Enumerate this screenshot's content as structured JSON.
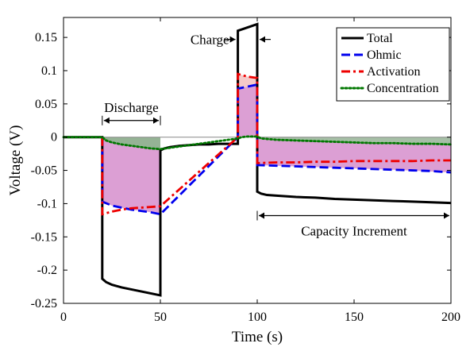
{
  "chart_data": {
    "type": "line",
    "title": "",
    "xlabel": "Time (s)",
    "ylabel": "Voltage (V)",
    "xlim": [
      0,
      200
    ],
    "ylim": [
      -0.25,
      0.18
    ],
    "xticks": [
      0,
      50,
      100,
      150,
      200
    ],
    "xtick_labels": [
      "0",
      "50",
      "100",
      "150",
      "200"
    ],
    "yticks": [
      -0.25,
      -0.2,
      -0.15,
      -0.1,
      -0.05,
      0,
      0.05,
      0.1,
      0.15
    ],
    "ytick_labels": [
      "-0.25",
      "-0.2",
      "-0.15",
      "-0.1",
      "-0.05",
      "0",
      "0.05",
      "0.1",
      "0.15"
    ],
    "grid": false,
    "legend_position": "top-right",
    "series": [
      {
        "name": "Total",
        "color": "#000000",
        "dash": "solid",
        "x": [
          0,
          20,
          20,
          22,
          25,
          30,
          35,
          40,
          45,
          50,
          50,
          52,
          55,
          60,
          65,
          70,
          75,
          80,
          85,
          90,
          90,
          92,
          95,
          98,
          100,
          100,
          102,
          105,
          110,
          120,
          130,
          140,
          150,
          160,
          170,
          180,
          190,
          200
        ],
        "y": [
          0,
          0,
          -0.213,
          -0.218,
          -0.222,
          -0.226,
          -0.229,
          -0.232,
          -0.235,
          -0.238,
          -0.02,
          -0.017,
          -0.015,
          -0.013,
          -0.012,
          -0.011,
          -0.011,
          -0.01,
          -0.01,
          -0.01,
          0.16,
          0.162,
          0.165,
          0.168,
          0.17,
          -0.082,
          -0.085,
          -0.087,
          -0.088,
          -0.09,
          -0.091,
          -0.093,
          -0.094,
          -0.095,
          -0.096,
          -0.097,
          -0.098,
          -0.099
        ]
      },
      {
        "name": "Ohmic",
        "color": "#0000ee",
        "dash": "dashed",
        "x": [
          20,
          20,
          25,
          30,
          35,
          40,
          45,
          50,
          90,
          90,
          95,
          100,
          100,
          110,
          120,
          130,
          140,
          150,
          160,
          170,
          180,
          190,
          200
        ],
        "y": [
          0,
          -0.097,
          -0.103,
          -0.106,
          -0.109,
          -0.111,
          -0.113,
          -0.116,
          0,
          0.073,
          0.076,
          0.079,
          -0.042,
          -0.043,
          -0.044,
          -0.045,
          -0.046,
          -0.047,
          -0.048,
          -0.049,
          -0.05,
          -0.051,
          -0.053
        ]
      },
      {
        "name": "Activation",
        "color": "#ee0000",
        "dash": "dashdot",
        "x": [
          20,
          20,
          25,
          30,
          35,
          40,
          45,
          50,
          90,
          90,
          95,
          100,
          100,
          110,
          120,
          130,
          140,
          150,
          160,
          170,
          180,
          190,
          200
        ],
        "y": [
          0,
          -0.116,
          -0.112,
          -0.109,
          -0.107,
          -0.106,
          -0.105,
          -0.104,
          0,
          0.095,
          0.091,
          0.089,
          -0.039,
          -0.038,
          -0.038,
          -0.037,
          -0.037,
          -0.036,
          -0.036,
          -0.036,
          -0.036,
          -0.035,
          -0.035
        ]
      },
      {
        "name": "Concentration",
        "color": "#007700",
        "dash": "dotted",
        "x": [
          0,
          20,
          22,
          25,
          30,
          35,
          40,
          45,
          50,
          90,
          92,
          95,
          98,
          100,
          102,
          110,
          120,
          130,
          140,
          150,
          160,
          170,
          180,
          190,
          200
        ],
        "y": [
          0,
          0,
          -0.005,
          -0.008,
          -0.011,
          -0.013,
          -0.015,
          -0.017,
          -0.018,
          -0.002,
          0,
          0.001,
          0.001,
          0.001,
          -0.002,
          -0.004,
          -0.005,
          -0.006,
          -0.007,
          -0.008,
          -0.009,
          -0.009,
          -0.01,
          -0.01,
          -0.011
        ]
      }
    ],
    "shaded_regions": [
      {
        "color": "#c050b0",
        "opacity": 0.55,
        "x": [
          20,
          25,
          30,
          35,
          40,
          45,
          50
        ],
        "y_top": [
          -0.005,
          -0.008,
          -0.011,
          -0.013,
          -0.015,
          -0.017,
          -0.018
        ],
        "y_bottom": [
          -0.097,
          -0.103,
          -0.106,
          -0.109,
          -0.111,
          -0.113,
          -0.116
        ]
      },
      {
        "color": "#c050b0",
        "opacity": 0.55,
        "x": [
          90,
          95,
          100
        ],
        "y_top": [
          0,
          0,
          0
        ],
        "y_bottom": [
          0.073,
          0.076,
          0.079
        ]
      },
      {
        "color": "#c050b0",
        "opacity": 0.55,
        "x": [
          100,
          110,
          130,
          150,
          170,
          200
        ],
        "y_top": [
          -0.003,
          -0.005,
          -0.007,
          -0.009,
          -0.01,
          -0.011
        ],
        "y_bottom": [
          -0.042,
          -0.043,
          -0.045,
          -0.047,
          -0.049,
          -0.053
        ]
      },
      {
        "color": "#e88888",
        "opacity": 0.45,
        "x": [
          90,
          95,
          100
        ],
        "y_top": [
          0.095,
          0.091,
          0.089
        ],
        "y_bottom": [
          0.073,
          0.076,
          0.079
        ]
      },
      {
        "color": "#5c8a5c",
        "opacity": 0.65,
        "x": [
          20,
          25,
          30,
          35,
          40,
          45,
          50
        ],
        "y_top": [
          0,
          0,
          0,
          0,
          0,
          0,
          0
        ],
        "y_bottom": [
          -0.005,
          -0.008,
          -0.011,
          -0.013,
          -0.015,
          -0.017,
          -0.018
        ]
      },
      {
        "color": "#5c8a5c",
        "opacity": 0.55,
        "x": [
          100,
          110,
          130,
          150,
          170,
          200
        ],
        "y_top": [
          0,
          0,
          0,
          0,
          0,
          0
        ],
        "y_bottom": [
          -0.003,
          -0.005,
          -0.007,
          -0.009,
          -0.01,
          -0.011
        ]
      }
    ],
    "annotations": [
      {
        "text": "Discharge",
        "x": 35,
        "y": 0.038,
        "arrow": {
          "type": "double",
          "x1": 20,
          "x2": 50,
          "y": 0.025
        }
      },
      {
        "text": "Charge",
        "x": 75.5,
        "y": 0.14,
        "arrow": {
          "type": "inward",
          "x1": 90,
          "x2": 100,
          "y": 0.147
        }
      },
      {
        "text": "Capacity Increment",
        "x": 150,
        "y": -0.148,
        "arrow": {
          "type": "double",
          "x1": 100,
          "x2": 200,
          "y": -0.118
        }
      }
    ]
  }
}
